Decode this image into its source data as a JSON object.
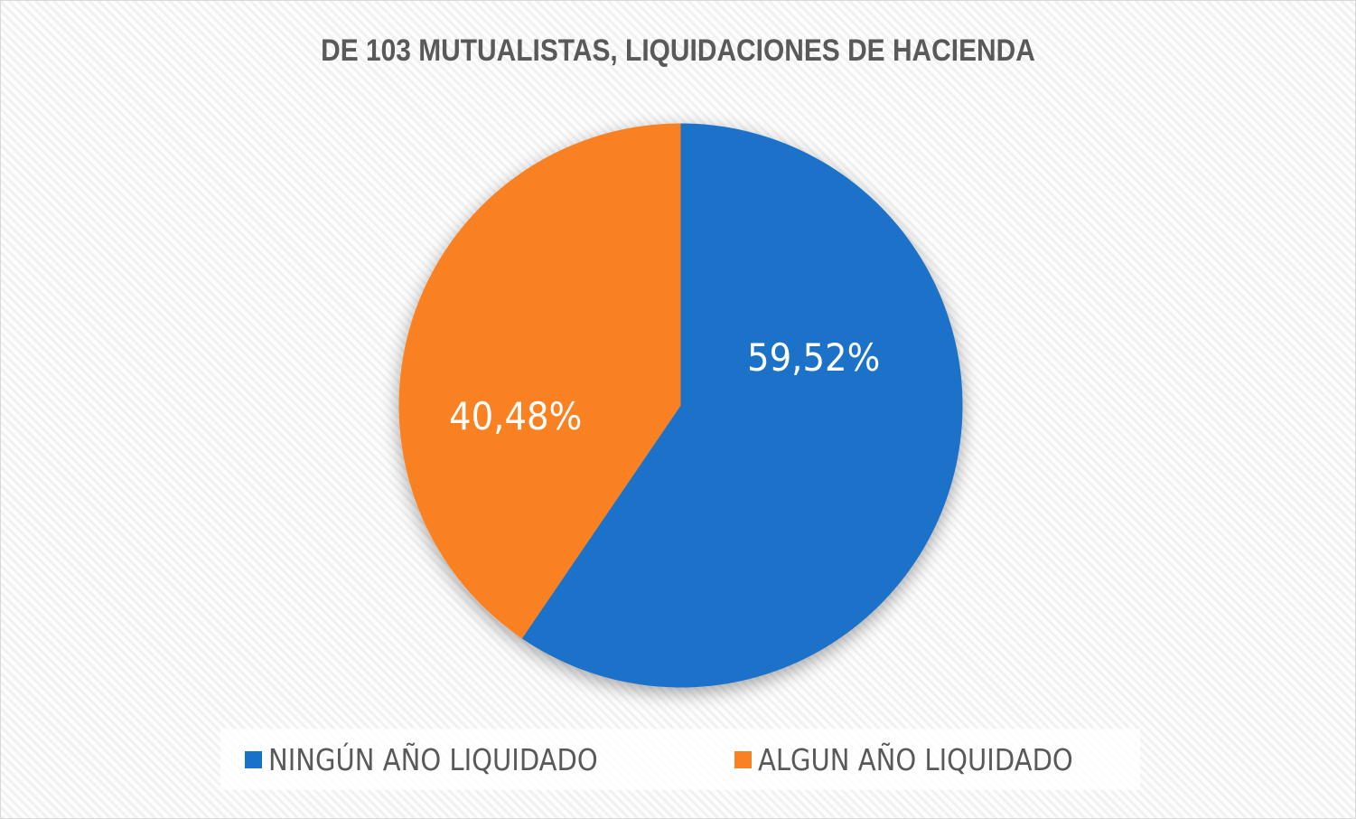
{
  "chart_data": {
    "type": "pie",
    "title": "DE 103 MUTUALISTAS, LIQUIDACIONES DE HACIENDA",
    "categories": [
      "NINGÚN AÑO LIQUIDADO",
      "ALGUN AÑO LIQUIDADO"
    ],
    "values": [
      59.52,
      40.48
    ],
    "data_labels": [
      "59,52%",
      "40,48%"
    ],
    "colors": [
      "#1a72c8",
      "#f98124"
    ],
    "legend_position": "bottom",
    "start_angle_deg": 0,
    "direction": "clockwise"
  },
  "title": "DE 103 MUTUALISTAS, LIQUIDACIONES DE HACIENDA",
  "labels": {
    "blue": "59,52%",
    "orange": "40,48%"
  },
  "legend": {
    "items": [
      {
        "label": "NINGÚN AÑO LIQUIDADO",
        "color": "#1a72c8"
      },
      {
        "label": "ALGUN AÑO LIQUIDADO",
        "color": "#f98124"
      }
    ]
  }
}
